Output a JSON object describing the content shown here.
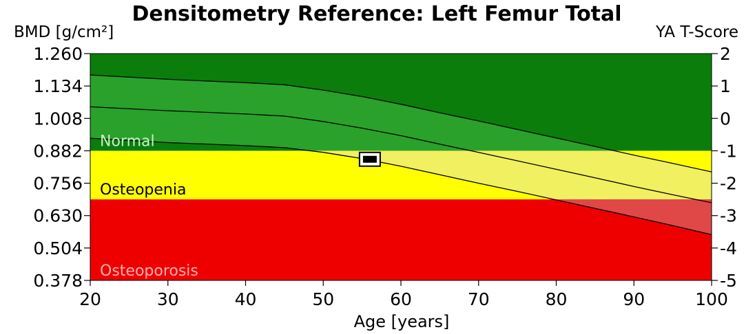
{
  "chart_data": {
    "type": "area",
    "title": "Densitometry Reference: Left Femur Total",
    "ylabel_left": "BMD [g/cm²]",
    "ylabel_right": "YA T-Score",
    "xlabel": "Age [years]",
    "xlim": [
      20,
      100
    ],
    "ylim": [
      0.378,
      1.26
    ],
    "x_ticks": [
      "20",
      "30",
      "40",
      "50",
      "60",
      "70",
      "80",
      "90",
      "100"
    ],
    "y_ticks_left": [
      "1.260",
      "1.134",
      "1.008",
      "0.882",
      "0.756",
      "0.630",
      "0.504",
      "0.378"
    ],
    "y_ticks_right": [
      "2",
      "1",
      "0",
      "-1",
      "-2",
      "-3",
      "-4",
      "-5"
    ],
    "zones": [
      {
        "label": "Normal",
        "from": 0.882,
        "to": 1.26,
        "color": "#0b7d0b",
        "label_color": "#c8f0c8"
      },
      {
        "label": "Osteopenia",
        "from": 0.693,
        "to": 0.882,
        "color": "#ffff00",
        "label_color": "#000000"
      },
      {
        "label": "Osteoporosis",
        "from": 0.378,
        "to": 0.693,
        "color": "#ee0000",
        "label_color": "#ffb0b0"
      }
    ],
    "reference_curves": {
      "x": [
        20,
        30,
        40,
        45,
        50,
        55,
        60,
        65,
        70,
        75,
        80,
        85,
        90,
        95,
        100
      ],
      "upper": [
        1.177,
        1.16,
        1.147,
        1.139,
        1.118,
        1.093,
        1.063,
        1.03,
        0.998,
        0.965,
        0.932,
        0.899,
        0.865,
        0.833,
        0.8
      ],
      "mean": [
        1.053,
        1.038,
        1.025,
        1.017,
        0.996,
        0.97,
        0.941,
        0.908,
        0.876,
        0.843,
        0.81,
        0.777,
        0.743,
        0.711,
        0.68
      ],
      "lower": [
        0.931,
        0.914,
        0.902,
        0.894,
        0.876,
        0.852,
        0.822,
        0.789,
        0.756,
        0.724,
        0.691,
        0.658,
        0.625,
        0.591,
        0.556
      ]
    },
    "patient_point": {
      "x": 56,
      "y": 0.849
    },
    "colors": {
      "normal_band": "#2aa12a",
      "osteopenia_band": "#f0f060",
      "osteoporosis_band": "#e04848",
      "curve": "#000000"
    }
  }
}
